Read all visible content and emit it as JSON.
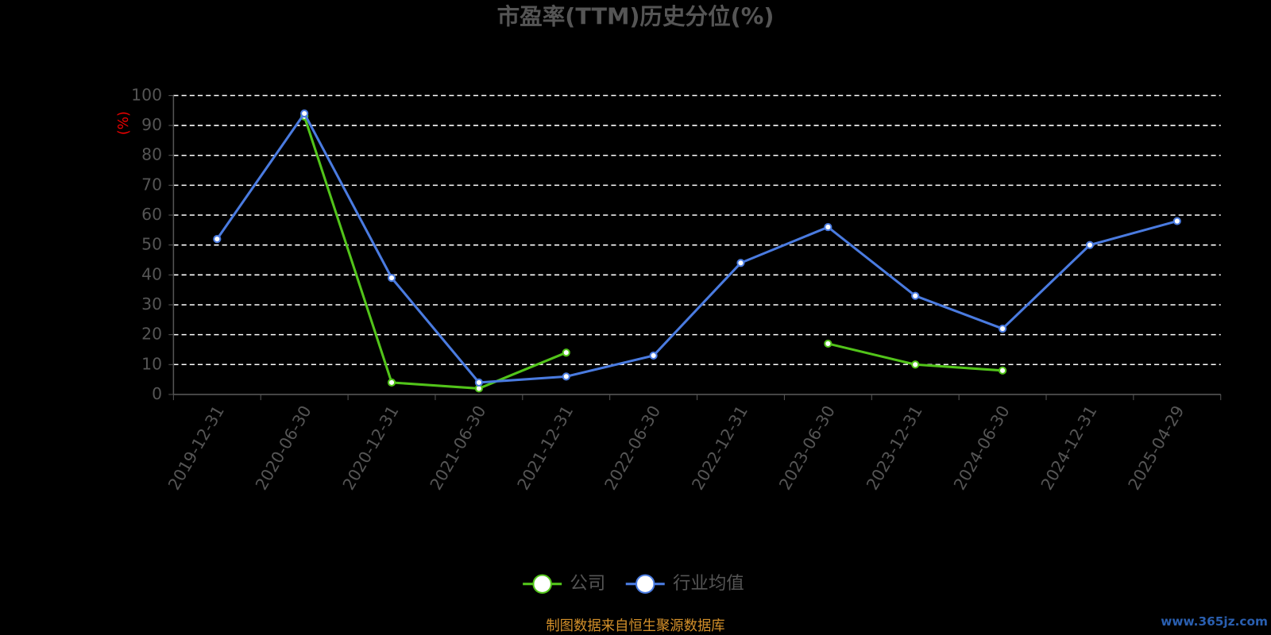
{
  "chart_data": {
    "type": "line",
    "title": "市盈率(TTM)历史分位(%)",
    "y_label": "(%)",
    "categories": [
      "2019-12-31",
      "2020-06-30",
      "2020-12-31",
      "2021-06-30",
      "2021-12-31",
      "2022-06-30",
      "2022-12-31",
      "2023-06-30",
      "2023-12-31",
      "2024-06-30",
      "2024-12-31",
      "2025-04-29"
    ],
    "series": [
      {
        "name": "公司",
        "color": "#52c41a",
        "values": [
          null,
          93,
          4,
          2,
          14,
          null,
          null,
          17,
          10,
          8,
          null,
          null
        ]
      },
      {
        "name": "行业均值",
        "color": "#4a7be0",
        "values": [
          52,
          94,
          39,
          4,
          6,
          13,
          44,
          56,
          33,
          22,
          50,
          58
        ]
      }
    ],
    "ylim": [
      0,
      100
    ],
    "yticks": [
      0,
      10,
      20,
      30,
      40,
      50,
      60,
      70,
      80,
      90,
      100
    ],
    "grid": true,
    "legend": "bottom",
    "source": "制图数据来自恒生聚源数据库",
    "watermark": "www.365jz.com"
  }
}
